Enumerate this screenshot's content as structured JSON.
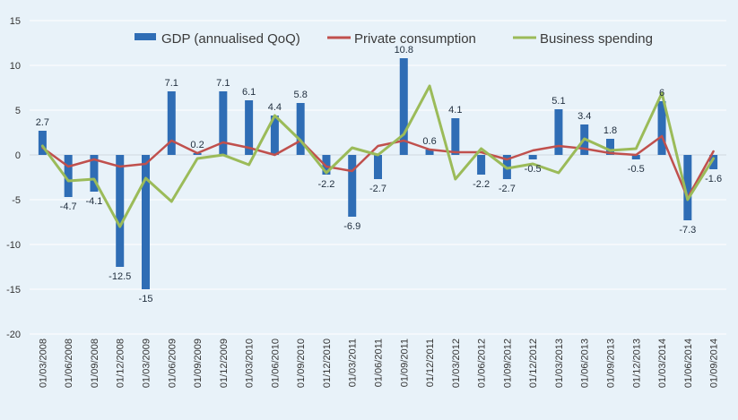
{
  "chart_data": {
    "type": "bar",
    "title": "",
    "xlabel": "",
    "ylabel": "",
    "ylim": [
      -20,
      15
    ],
    "yticks": [
      -20,
      -15,
      -10,
      -5,
      0,
      5,
      10,
      15
    ],
    "grid": true,
    "legend_position": "top",
    "categories": [
      "01/03/2008",
      "01/06/2008",
      "01/09/2008",
      "01/12/2008",
      "01/03/2009",
      "01/06/2009",
      "01/09/2009",
      "01/12/2009",
      "01/03/2010",
      "01/06/2010",
      "01/09/2010",
      "01/12/2010",
      "01/03/2011",
      "01/06/2011",
      "01/09/2011",
      "01/12/2011",
      "01/03/2012",
      "01/06/2012",
      "01/09/2012",
      "01/12/2012",
      "01/03/2013",
      "01/06/2013",
      "01/09/2013",
      "01/12/2013",
      "01/03/2014",
      "01/06/2014",
      "01/09/2014"
    ],
    "series": [
      {
        "name": "GDP (annualised QoQ)",
        "type": "bar",
        "color": "#2f6db5",
        "values": [
          2.7,
          -4.7,
          -4.1,
          -12.5,
          -15,
          7.1,
          0.2,
          7.1,
          6.1,
          4.4,
          5.8,
          -2.2,
          -6.9,
          -2.7,
          10.8,
          0.6,
          4.1,
          -2.2,
          -2.7,
          -0.5,
          5.1,
          3.4,
          1.8,
          -0.5,
          6,
          -7.3,
          -1.6
        ],
        "labels": [
          "2.7",
          "-4.7",
          "-4.1",
          "-12.5",
          "-15",
          "7.1",
          "0.2",
          "7.1",
          "6.1",
          "4.4",
          "5.8",
          "-2.2",
          "-6.9",
          "-2.7",
          "10.8",
          "0.6",
          "4.1",
          "-2.2",
          "-2.7",
          "-0.5",
          "5.1",
          "3.4",
          "1.8",
          "-0.5",
          "6",
          "-7.3",
          "-1.6"
        ]
      },
      {
        "name": "Private consumption",
        "type": "line",
        "color": "#c0504d",
        "values": [
          0.8,
          -1.3,
          -0.5,
          -1.3,
          -1.0,
          1.6,
          0.2,
          1.4,
          0.8,
          0.0,
          1.6,
          -1.3,
          -1.8,
          1.0,
          1.6,
          0.6,
          0.3,
          0.3,
          -0.5,
          0.5,
          1.0,
          0.7,
          0.2,
          0.0,
          2.1,
          -4.8,
          0.4
        ]
      },
      {
        "name": "Business spending",
        "type": "line",
        "color": "#9bbb59",
        "values": [
          1.0,
          -2.9,
          -2.7,
          -8.0,
          -2.6,
          -5.2,
          -0.4,
          0.0,
          -1.1,
          4.4,
          1.6,
          -2.0,
          0.8,
          0.0,
          2.3,
          7.7,
          -2.7,
          0.7,
          -1.5,
          -1.0,
          -2.0,
          1.8,
          0.5,
          0.7,
          6.9,
          -5.0,
          -0.4
        ]
      }
    ]
  }
}
